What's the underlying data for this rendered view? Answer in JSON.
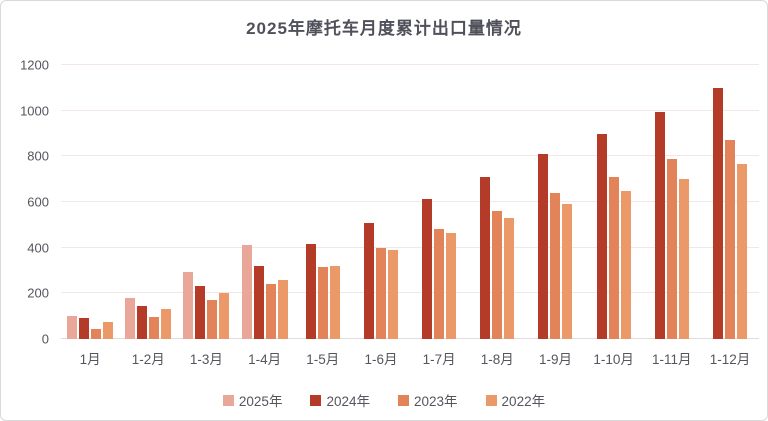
{
  "chart_data": {
    "type": "bar",
    "title": "2025年摩托车月度累计出口量情况",
    "xlabel": "",
    "ylabel": "",
    "ylim": [
      0,
      1200
    ],
    "yticks": [
      0,
      200,
      400,
      600,
      800,
      1000,
      1200
    ],
    "grid": true,
    "legend_position": "bottom",
    "categories": [
      "1月",
      "1-2月",
      "1-3月",
      "1-4月",
      "1-5月",
      "1-6月",
      "1-7月",
      "1-8月",
      "1-9月",
      "1-10月",
      "1-11月",
      "1-12月"
    ],
    "series": [
      {
        "name": "2025年",
        "color": "#e9a79a",
        "values": [
          100,
          180,
          295,
          410,
          null,
          null,
          null,
          null,
          null,
          null,
          null,
          null
        ]
      },
      {
        "name": "2024年",
        "color": "#b43b27",
        "values": [
          90,
          145,
          230,
          320,
          415,
          510,
          615,
          710,
          810,
          900,
          995,
          1100
        ]
      },
      {
        "name": "2023年",
        "color": "#e2835a",
        "values": [
          45,
          95,
          170,
          240,
          315,
          400,
          480,
          560,
          640,
          710,
          790,
          870
        ]
      },
      {
        "name": "2022年",
        "color": "#ec9969",
        "values": [
          75,
          130,
          200,
          260,
          320,
          390,
          465,
          530,
          590,
          650,
          700,
          765
        ]
      }
    ],
    "colors": {
      "title_text": "#50505a",
      "axis_text": "#55555e",
      "gridline": "#f1e7e4",
      "background": "#ffffff",
      "border": "#d9d9d9"
    }
  }
}
